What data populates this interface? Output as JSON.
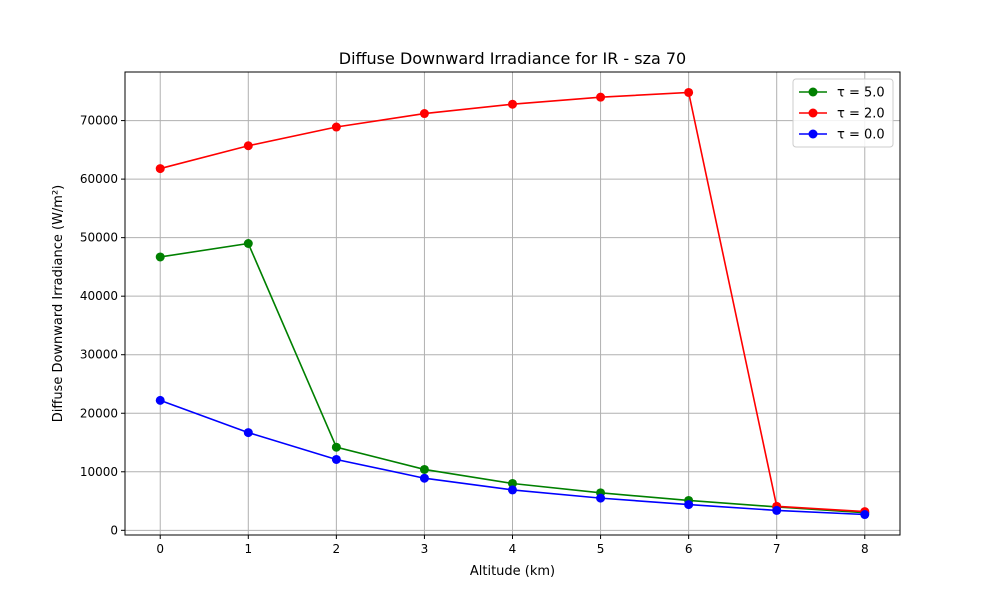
{
  "chart_data": {
    "type": "line",
    "title": "Diffuse Downward Irradiance for IR - sza 70",
    "xlabel": "Altitude (km)",
    "ylabel": "Diffuse Downward Irradiance (W/m²)",
    "x": [
      0,
      1,
      2,
      3,
      4,
      5,
      6,
      7,
      8
    ],
    "xlim": [
      -0.4,
      8.4
    ],
    "ylim": [
      -800,
      78300
    ],
    "xticks": [
      0,
      1,
      2,
      3,
      4,
      5,
      6,
      7,
      8
    ],
    "yticks": [
      0,
      10000,
      20000,
      30000,
      40000,
      50000,
      60000,
      70000
    ],
    "grid": true,
    "legend_position": "top-right",
    "series": [
      {
        "name": "τ = 5.0",
        "color": "#008000",
        "values": [
          46700,
          49000,
          14200,
          10400,
          8000,
          6400,
          5100,
          4000,
          3000
        ]
      },
      {
        "name": "τ = 2.0",
        "color": "#ff0000",
        "values": [
          61800,
          65700,
          68900,
          71200,
          72800,
          74000,
          74800,
          4100,
          3200
        ]
      },
      {
        "name": "τ = 0.0",
        "color": "#0000ff",
        "values": [
          22200,
          16700,
          12100,
          8900,
          6900,
          5500,
          4400,
          3400,
          2700
        ]
      }
    ]
  }
}
